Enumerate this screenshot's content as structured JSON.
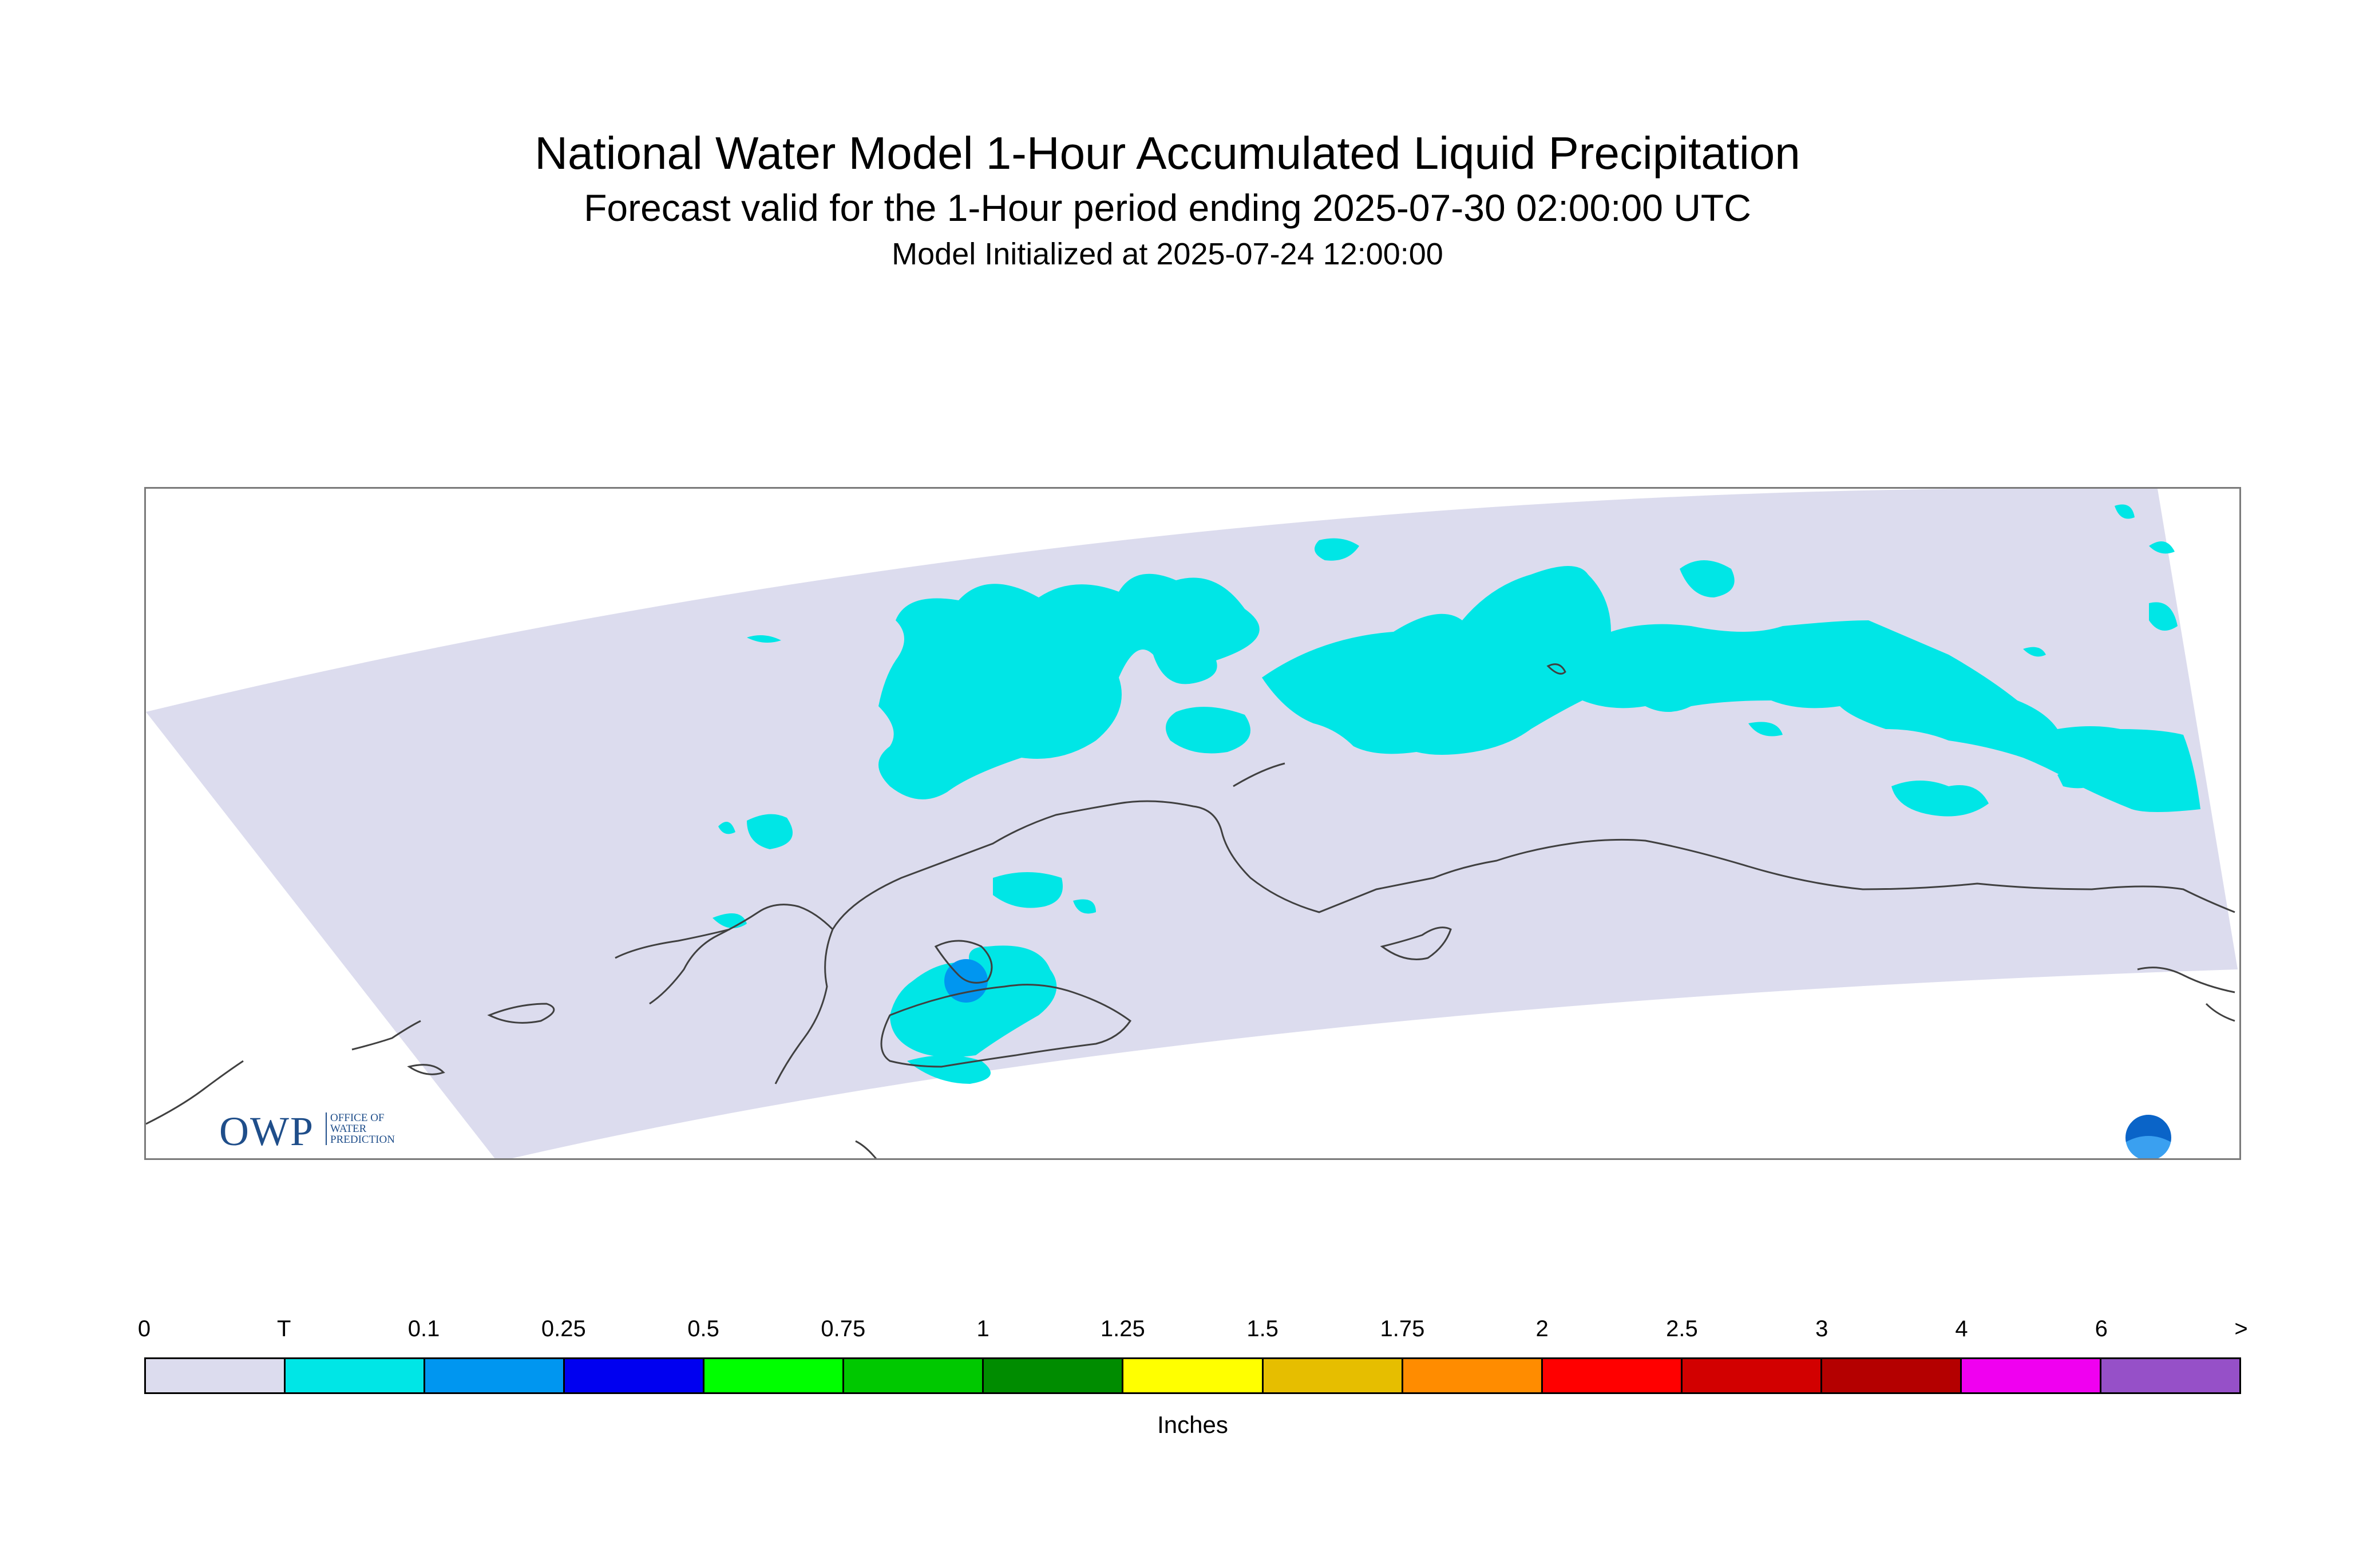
{
  "title": "National Water Model 1-Hour Accumulated Liquid Precipitation",
  "subtitle": "Forecast valid for the 1-Hour period ending 2025-07-30 02:00:00 UTC",
  "init_line": "Model Initialized at 2025-07-24 12:00:00",
  "logo": {
    "owp_letters": "OWP",
    "owp_subtext": [
      "OFFICE OF",
      "WATER",
      "PREDICTION"
    ],
    "noaa_icon": "noaa-logo-icon"
  },
  "colors": {
    "domain_fill": "#dcdcee",
    "trace": "#00e6e6",
    "light_blue": "#0096f0",
    "coastline": "#404040"
  },
  "legend": {
    "tick_labels": [
      "0",
      "T",
      "0.1",
      "0.25",
      "0.5",
      "0.75",
      "1",
      "1.25",
      "1.5",
      "1.75",
      "2",
      "2.5",
      "3",
      "4",
      "6",
      ">"
    ],
    "colors": [
      "#dcdcee",
      "#00e6e6",
      "#0096f0",
      "#0000f0",
      "#00ff00",
      "#00c800",
      "#008c00",
      "#ffff00",
      "#e6be00",
      "#ff8c00",
      "#ff0000",
      "#d20000",
      "#b40000",
      "#f000f0",
      "#9650c8"
    ],
    "units": "Inches"
  }
}
